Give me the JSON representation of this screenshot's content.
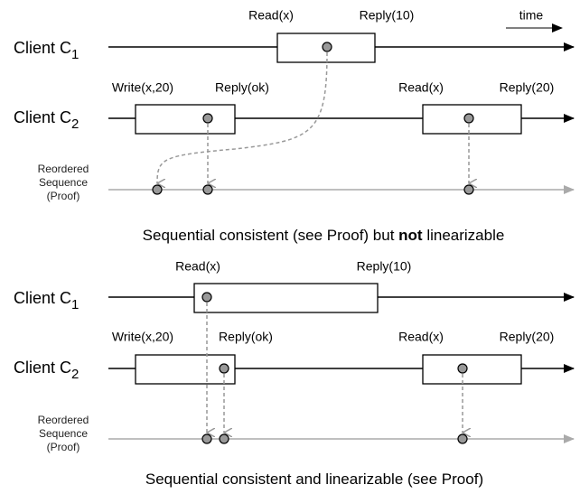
{
  "time_label": "time",
  "diagrams": [
    {
      "client1": {
        "label": "Client C",
        "subscript": "1",
        "ops": [
          "Read(x)",
          "Reply(10)"
        ]
      },
      "client2": {
        "label": "Client C",
        "subscript": "2",
        "ops": [
          "Write(x,20)",
          "Reply(ok)",
          "Read(x)",
          "Reply(20)"
        ]
      },
      "sequence_label": [
        "Reordered",
        "Sequence",
        "(Proof)"
      ],
      "caption": {
        "before": "Sequential consistent (see Proof) but ",
        "bold": "not",
        "after": " linearizable"
      }
    },
    {
      "client1": {
        "label": "Client C",
        "subscript": "1",
        "ops": [
          "Read(x)",
          "Reply(10)"
        ]
      },
      "client2": {
        "label": "Client C",
        "subscript": "2",
        "ops": [
          "Write(x,20)",
          "Reply(ok)",
          "Read(x)",
          "Reply(20)"
        ]
      },
      "sequence_label": [
        "Reordered",
        "Sequence",
        "(Proof)"
      ],
      "caption": {
        "before": "Sequential consistent and linearizable (see Proof)"
      }
    }
  ]
}
